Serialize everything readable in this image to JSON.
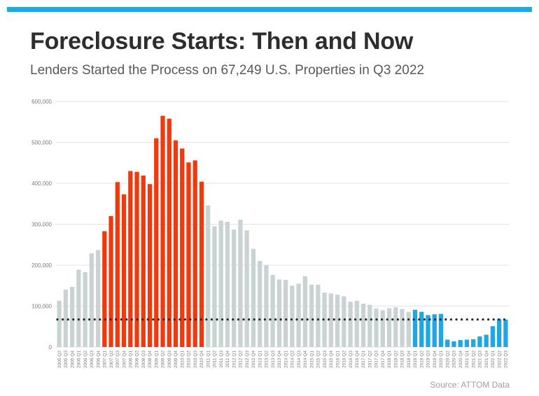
{
  "title": "Foreclosure Starts: Then and Now",
  "subtitle": "Lenders Started the Process on 67,249 U.S. Properties in Q3 2022",
  "source": "Source: ATTOM Data",
  "colors": {
    "accent_bar": "#1ea7e4",
    "title": "#2d2d2d",
    "subtitle": "#595959",
    "gray_bar": "#c9d3d4",
    "red_bar": "#f03a0e",
    "blue_bar": "#1ea7e4",
    "reference_line": "#2a2a2a",
    "grid": "#e3e3e3"
  },
  "chart_data": {
    "type": "bar",
    "ylim": [
      0,
      600000
    ],
    "yticks": [
      0,
      100000,
      200000,
      300000,
      400000,
      500000,
      600000
    ],
    "ytick_labels": [
      "0",
      "100,000",
      "200,000",
      "300,000",
      "400,000",
      "500,000",
      "600,000"
    ],
    "grid": true,
    "reference_line": {
      "value": 67249,
      "style": "dotted"
    },
    "categories": [
      "2005 Q2",
      "2005 Q3",
      "2005 Q4",
      "2006 Q1",
      "2006 Q2",
      "2006 Q3",
      "2006 Q4",
      "2007 Q1",
      "2007 Q2",
      "2007 Q3",
      "2007 Q4",
      "2008 Q1",
      "2008 Q2",
      "2008 Q3",
      "2008 Q4",
      "2009 Q1",
      "2009 Q2",
      "2009 Q3",
      "2009 Q4",
      "2010 Q1",
      "2010 Q2",
      "2010 Q3",
      "2010 Q4",
      "2011 Q1",
      "2011 Q2",
      "2011 Q3",
      "2011 Q4",
      "2012 Q1",
      "2012 Q2",
      "2012 Q3",
      "2012 Q4",
      "2013 Q1",
      "2013 Q2",
      "2013 Q3",
      "2013 Q4",
      "2014 Q1",
      "2014 Q2",
      "2014 Q3",
      "2014 Q4",
      "2015 Q1",
      "2015 Q2",
      "2015 Q3",
      "2015 Q4",
      "2016 Q1",
      "2016 Q2",
      "2016 Q3",
      "2016 Q4",
      "2017 Q1",
      "2017 Q2",
      "2017 Q3",
      "2017 Q4",
      "2018 Q1",
      "2018 Q2",
      "2018 Q3",
      "2018 Q4",
      "2019 Q1",
      "2019 Q2",
      "2019 Q3",
      "2019 Q4",
      "2020 Q1",
      "2020 Q2",
      "2020 Q3",
      "2020 Q4",
      "2021 Q1",
      "2021 Q2",
      "2021 Q3",
      "2021 Q4",
      "2022 Q1",
      "2022 Q2",
      "2022 Q3"
    ],
    "values": [
      113000,
      140000,
      147000,
      189000,
      183000,
      229000,
      237000,
      283000,
      320000,
      403000,
      373000,
      430000,
      428000,
      419000,
      398000,
      510000,
      565000,
      558000,
      505000,
      485000,
      451000,
      456000,
      404000,
      346000,
      295000,
      309000,
      306000,
      287000,
      311000,
      285000,
      240000,
      210000,
      200000,
      176000,
      165000,
      164000,
      150000,
      155000,
      173000,
      152000,
      152000,
      133000,
      131000,
      128000,
      124000,
      111000,
      113000,
      106000,
      103000,
      94000,
      90000,
      95000,
      97000,
      93000,
      86000,
      91000,
      86000,
      78000,
      80000,
      81000,
      18000,
      14000,
      17000,
      18000,
      19000,
      26000,
      30000,
      51000,
      68000,
      67249
    ],
    "bar_colors": [
      "gray",
      "gray",
      "gray",
      "gray",
      "gray",
      "gray",
      "gray",
      "red",
      "red",
      "red",
      "red",
      "red",
      "red",
      "red",
      "red",
      "red",
      "red",
      "red",
      "red",
      "red",
      "red",
      "red",
      "red",
      "gray",
      "gray",
      "gray",
      "gray",
      "gray",
      "gray",
      "gray",
      "gray",
      "gray",
      "gray",
      "gray",
      "gray",
      "gray",
      "gray",
      "gray",
      "gray",
      "gray",
      "gray",
      "gray",
      "gray",
      "gray",
      "gray",
      "gray",
      "gray",
      "gray",
      "gray",
      "gray",
      "gray",
      "gray",
      "gray",
      "gray",
      "gray",
      "blue",
      "blue",
      "blue",
      "blue",
      "blue",
      "blue",
      "blue",
      "blue",
      "blue",
      "blue",
      "blue",
      "blue",
      "blue",
      "blue",
      "blue"
    ]
  }
}
